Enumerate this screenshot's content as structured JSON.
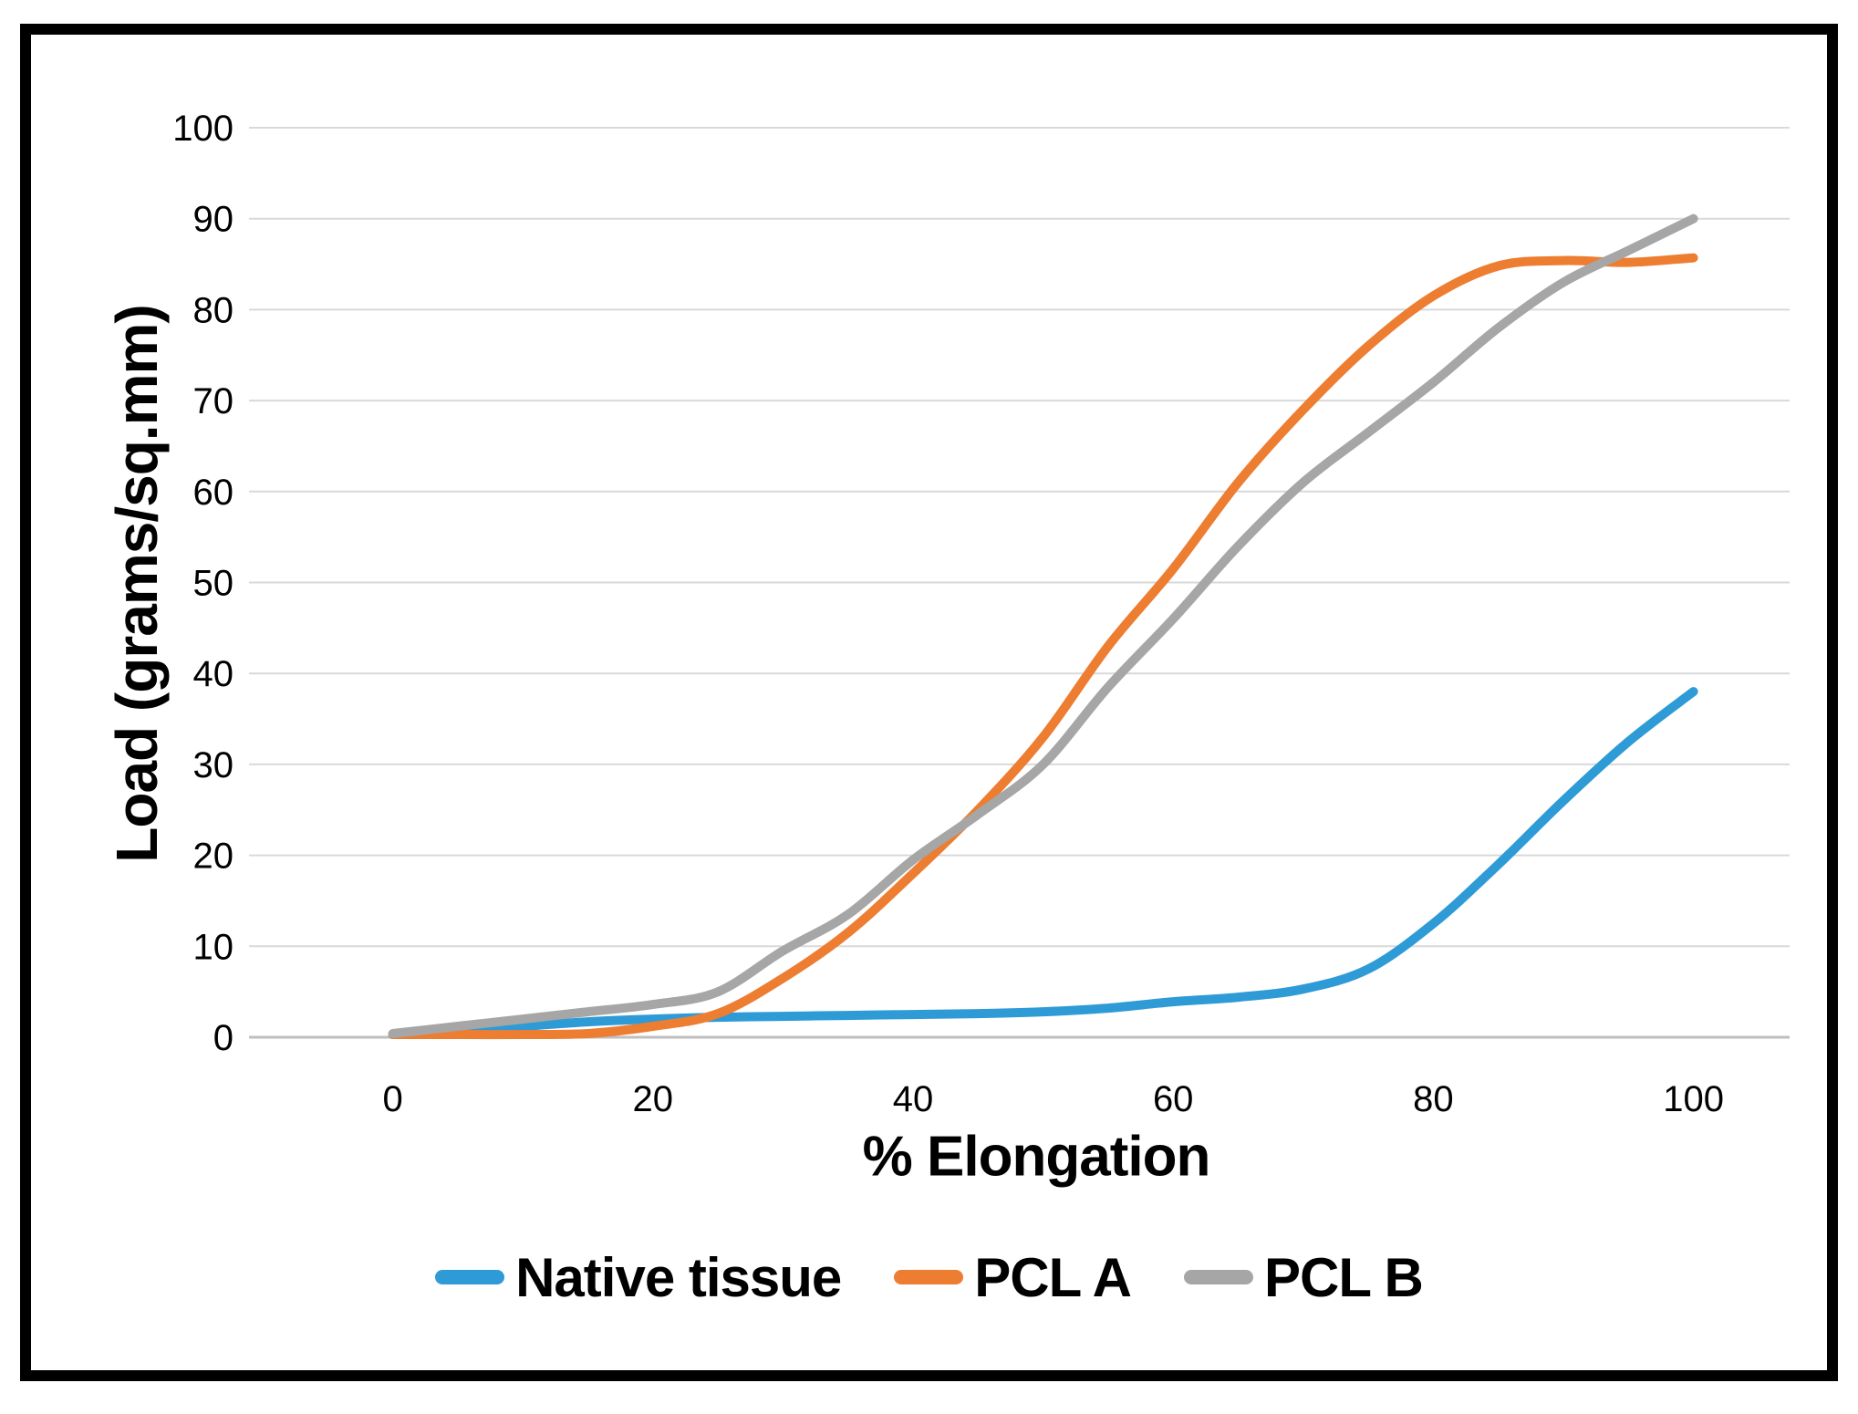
{
  "figure": {
    "kind": "line-chart-figure",
    "background": "#ffffff",
    "border_color": "#000000"
  },
  "chart_data": {
    "type": "line",
    "title": "",
    "xlabel": "% Elongation",
    "ylabel": "Load (grams/sq.mm)",
    "xlim": [
      0,
      100
    ],
    "ylim": [
      0,
      100
    ],
    "x_ticks": [
      0,
      20,
      40,
      60,
      80,
      100
    ],
    "y_ticks": [
      0,
      10,
      20,
      30,
      40,
      50,
      60,
      70,
      80,
      90,
      100
    ],
    "grid": true,
    "gridline_color": "#d9d9d9",
    "axis_line_color": "#bfbfbf",
    "tick_label_color": "#000000",
    "legend_position": "bottom",
    "x": [
      0,
      5,
      10,
      15,
      20,
      25,
      30,
      35,
      40,
      45,
      50,
      55,
      60,
      65,
      70,
      75,
      80,
      85,
      90,
      95,
      100
    ],
    "series": [
      {
        "name": "Native tissue",
        "color": "#2E9BD6",
        "values": [
          0.3,
          0.7,
          1.2,
          1.7,
          2.0,
          2.2,
          2.3,
          2.4,
          2.5,
          2.6,
          2.8,
          3.2,
          3.9,
          4.4,
          5.3,
          7.5,
          12.5,
          19,
          26,
          32.5,
          38
        ]
      },
      {
        "name": "PCL A",
        "color": "#ED7D31",
        "values": [
          0.3,
          0.3,
          0.3,
          0.4,
          1.2,
          2.6,
          6.5,
          11.5,
          18,
          25,
          33,
          43,
          51.5,
          61,
          69,
          76,
          81.5,
          84.8,
          85.4,
          85.2,
          85.7
        ]
      },
      {
        "name": "PCL B",
        "color": "#A6A6A6",
        "values": [
          0.4,
          1.2,
          2.0,
          2.8,
          3.6,
          5.0,
          9.5,
          13.5,
          19.5,
          24.5,
          30,
          38.5,
          46,
          54,
          61,
          66.5,
          72,
          78,
          83,
          86.5,
          90
        ]
      }
    ]
  }
}
